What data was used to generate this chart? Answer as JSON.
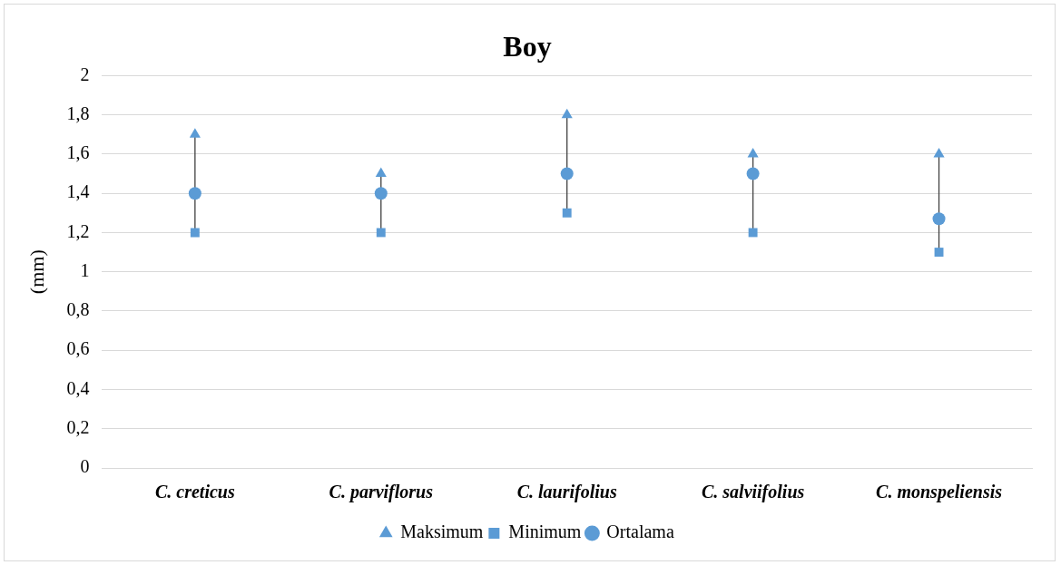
{
  "chart_data": {
    "type": "scatter",
    "title": "Boy",
    "ylabel": "(mm)",
    "categories": [
      "C. creticus",
      "C. parviflorus",
      "C. laurifolius",
      "C. salviifolius",
      "C. monspeliensis"
    ],
    "series": [
      {
        "name": "Maksimum",
        "color": "#5b9bd5",
        "marker": "triangle",
        "values": [
          1.7,
          1.5,
          1.8,
          1.6,
          1.6
        ]
      },
      {
        "name": "Minimum",
        "color": "#5b9bd5",
        "marker": "square",
        "values": [
          1.2,
          1.2,
          1.3,
          1.2,
          1.1
        ]
      },
      {
        "name": "Ortalama",
        "color": "#5b9bd5",
        "marker": "circle",
        "values": [
          1.4,
          1.4,
          1.5,
          1.5,
          1.27
        ]
      }
    ],
    "ylim": [
      0,
      2
    ],
    "yticks": [
      0,
      {
        "value": 0.2,
        "label": "0,2"
      },
      {
        "value": 0.4,
        "label": "0,4"
      },
      {
        "value": 0.6,
        "label": "0,6"
      },
      {
        "value": 0.8,
        "label": "0,8"
      },
      1,
      {
        "value": 1.2,
        "label": "1,2"
      },
      {
        "value": 1.4,
        "label": "1,4"
      },
      {
        "value": 1.6,
        "label": "1,6"
      },
      {
        "value": 1.8,
        "label": "1,8"
      },
      2
    ],
    "grid": "y",
    "legend": "bottom"
  }
}
